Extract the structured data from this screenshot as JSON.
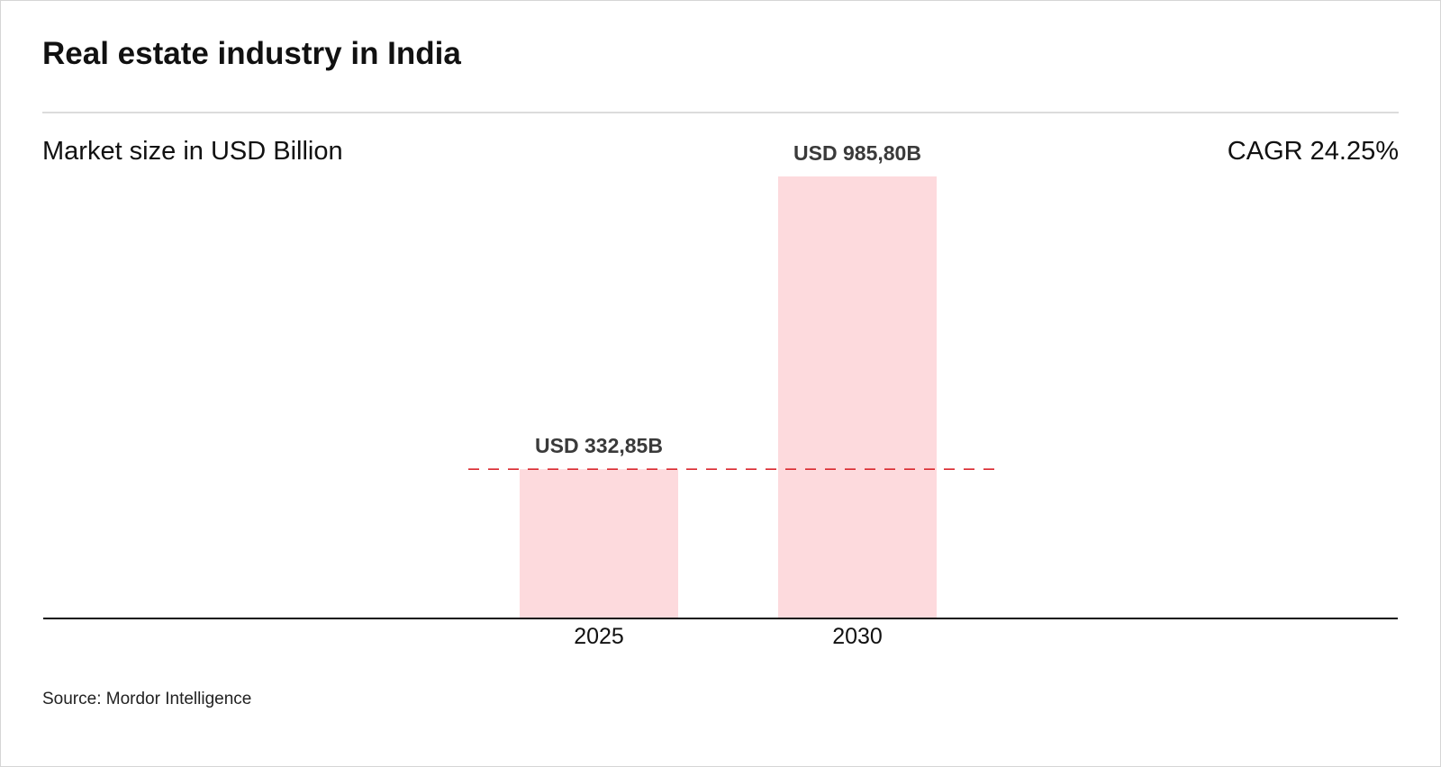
{
  "header": {
    "title": "Real estate industry in India"
  },
  "subtitle": "Market size in USD Billion",
  "cagr": "CAGR 24.25%",
  "source": "Source: Mordor Intelligence",
  "colors": {
    "bar": "#fddadd",
    "reference_line": "#d9272e",
    "axis": "#111111"
  },
  "chart_data": {
    "type": "bar",
    "categories": [
      "2025",
      "2030"
    ],
    "values": [
      332.85,
      985.8
    ],
    "data_labels": [
      "USD 332,85B",
      "USD 985,80B"
    ],
    "ylim": [
      0,
      985.8
    ],
    "grid": false,
    "reference_line": {
      "value": 332.85,
      "style": "dashed"
    },
    "xlabel": "",
    "ylabel": ""
  }
}
